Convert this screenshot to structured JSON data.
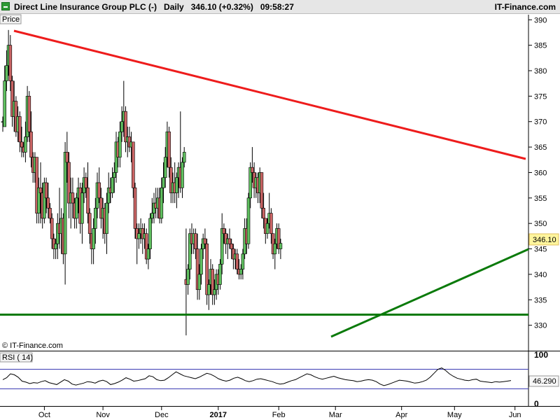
{
  "header": {
    "instrument": "Direct Line Insurance Group PLC (-)",
    "period": "Daily",
    "price": "346.10 (+0.32%)",
    "time": "09:58:27",
    "brand": "IT-Finance.com"
  },
  "colors": {
    "up": "#5fbf5f",
    "down": "#c96464",
    "resistance": "#ee1c1c",
    "support": "#0a7a0a",
    "rsi": "#000000",
    "rsi_band": "#3c3cb4"
  },
  "chart_data": [
    {
      "type": "candlestick",
      "title": "Price",
      "watermark": "© IT-Finance.com",
      "ylim": [
        325,
        391
      ],
      "yticks": [
        330,
        335,
        340,
        345,
        350,
        355,
        360,
        365,
        370,
        375,
        380,
        385,
        390
      ],
      "last_price_label": "346.10",
      "last_price": 346.1,
      "x_months": [
        {
          "label": "Oct",
          "pos": 22,
          "bold": false
        },
        {
          "label": "Nov",
          "pos": 53,
          "bold": false
        },
        {
          "label": "Dec",
          "pos": 84,
          "bold": false
        },
        {
          "label": "2017",
          "pos": 114,
          "bold": true
        },
        {
          "label": "Feb",
          "pos": 146,
          "bold": false
        },
        {
          "label": "Mar",
          "pos": 176,
          "bold": false
        },
        {
          "label": "Apr",
          "pos": 211,
          "bold": false
        },
        {
          "label": "May",
          "pos": 239,
          "bold": false
        },
        {
          "label": "Jun",
          "pos": 271,
          "bold": false
        }
      ],
      "candles": [
        [
          370.0,
          371.0,
          368.0,
          370.0
        ],
        [
          369.0,
          381.0,
          369.0,
          378.0
        ],
        [
          378.0,
          384.0,
          376.0,
          381.0
        ],
        [
          381.0,
          388.0,
          379.0,
          385.0
        ],
        [
          385.0,
          387.0,
          376.0,
          378.0
        ],
        [
          378.0,
          379.0,
          369.0,
          371.0
        ],
        [
          371.0,
          378.0,
          368.0,
          374.0
        ],
        [
          374.0,
          375.0,
          367.0,
          368.0
        ],
        [
          368.0,
          373.0,
          366.0,
          371.0
        ],
        [
          371.0,
          372.0,
          364.0,
          366.0
        ],
        [
          366.0,
          369.0,
          363.0,
          365.0
        ],
        [
          365.0,
          366.0,
          363.0,
          364.0
        ],
        [
          364.0,
          370.0,
          362.0,
          367.0
        ],
        [
          367.0,
          377.0,
          366.0,
          375.0
        ],
        [
          375.0,
          376.0,
          366.0,
          368.0
        ],
        [
          368.0,
          372.0,
          361.0,
          363.0
        ],
        [
          363.0,
          364.0,
          358.0,
          360.0
        ],
        [
          360.0,
          364.0,
          358.0,
          363.0
        ],
        [
          363.0,
          363.0,
          350.0,
          352.0
        ],
        [
          352.0,
          359.0,
          350.0,
          357.0
        ],
        [
          357.0,
          362.0,
          350.0,
          356.0
        ],
        [
          356.0,
          358.0,
          349.0,
          351.0
        ],
        [
          351.0,
          359.0,
          350.0,
          358.0
        ],
        [
          358.0,
          359.0,
          352.0,
          355.0
        ],
        [
          355.0,
          358.0,
          351.0,
          353.0
        ],
        [
          353.0,
          354.0,
          350.0,
          351.0
        ],
        [
          351.0,
          352.0,
          345.0,
          347.0
        ],
        [
          347.0,
          348.0,
          343.0,
          345.0
        ],
        [
          345.0,
          347.0,
          343.0,
          346.0
        ],
        [
          346.0,
          352.0,
          343.0,
          350.0
        ],
        [
          350.0,
          357.0,
          345.0,
          348.0
        ],
        [
          348.0,
          353.0,
          344.0,
          351.0
        ],
        [
          351.0,
          352.0,
          342.0,
          344.0
        ],
        [
          344.0,
          366.0,
          338.0,
          364.0
        ],
        [
          364.0,
          368.0,
          358.0,
          362.0
        ],
        [
          362.0,
          364.0,
          351.0,
          354.0
        ],
        [
          354.0,
          359.0,
          349.0,
          356.0
        ],
        [
          356.0,
          359.0,
          351.0,
          354.0
        ],
        [
          354.0,
          355.0,
          349.0,
          351.0
        ],
        [
          351.0,
          356.0,
          349.0,
          355.0
        ],
        [
          355.0,
          359.0,
          352.0,
          357.0
        ],
        [
          357.0,
          358.0,
          348.0,
          350.0
        ],
        [
          350.0,
          358.0,
          346.0,
          356.0
        ],
        [
          356.0,
          361.0,
          354.0,
          359.0
        ],
        [
          359.0,
          360.0,
          355.0,
          357.0
        ],
        [
          357.0,
          362.0,
          350.0,
          352.0
        ],
        [
          352.0,
          353.0,
          346.0,
          348.0
        ],
        [
          348.0,
          348.0,
          342.0,
          345.0
        ],
        [
          345.0,
          351.0,
          342.0,
          349.0
        ],
        [
          349.0,
          355.0,
          346.0,
          353.0
        ],
        [
          353.0,
          360.0,
          351.0,
          358.0
        ],
        [
          358.0,
          361.0,
          354.0,
          355.0
        ],
        [
          355.0,
          357.0,
          349.0,
          351.0
        ],
        [
          351.0,
          355.0,
          347.0,
          353.0
        ],
        [
          353.0,
          354.0,
          346.0,
          348.0
        ],
        [
          348.0,
          356.0,
          344.0,
          354.0
        ],
        [
          354.0,
          360.0,
          352.0,
          357.0
        ],
        [
          357.0,
          359.0,
          354.0,
          356.0
        ],
        [
          356.0,
          361.0,
          355.0,
          359.0
        ],
        [
          359.0,
          362.0,
          356.0,
          360.0
        ],
        [
          360.0,
          368.0,
          358.0,
          366.0
        ],
        [
          366.0,
          367.0,
          361.0,
          363.0
        ],
        [
          363.0,
          370.0,
          361.0,
          368.0
        ],
        [
          368.0,
          373.0,
          366.0,
          370.0
        ],
        [
          370.0,
          378.0,
          367.0,
          372.0
        ],
        [
          372.0,
          373.0,
          364.0,
          366.0
        ],
        [
          366.0,
          369.0,
          363.0,
          367.0
        ],
        [
          367.0,
          369.0,
          364.0,
          365.0
        ],
        [
          365.0,
          368.0,
          362.0,
          366.0
        ],
        [
          366.0,
          366.0,
          355.0,
          357.0
        ],
        [
          357.0,
          358.0,
          347.0,
          349.0
        ],
        [
          349.0,
          350.0,
          342.0,
          347.0
        ],
        [
          347.0,
          350.0,
          345.0,
          348.0
        ],
        [
          348.0,
          351.0,
          346.0,
          349.0
        ],
        [
          349.0,
          350.0,
          344.0,
          347.0
        ],
        [
          347.0,
          350.0,
          345.0,
          348.0
        ],
        [
          348.0,
          349.0,
          342.0,
          343.0
        ],
        [
          343.0,
          346.0,
          341.0,
          345.0
        ],
        [
          345.0,
          352.0,
          343.0,
          351.0
        ],
        [
          351.0,
          355.0,
          350.0,
          352.0
        ],
        [
          352.0,
          356.0,
          350.0,
          354.0
        ],
        [
          354.0,
          357.0,
          351.0,
          353.0
        ],
        [
          353.0,
          357.0,
          351.0,
          355.0
        ],
        [
          355.0,
          357.0,
          350.0,
          351.0
        ],
        [
          351.0,
          359.0,
          350.0,
          357.0
        ],
        [
          357.0,
          362.0,
          354.0,
          359.0
        ],
        [
          359.0,
          365.0,
          357.0,
          363.0
        ],
        [
          363.0,
          370.0,
          361.0,
          368.0
        ],
        [
          368.0,
          369.0,
          359.0,
          361.0
        ],
        [
          361.0,
          363.0,
          354.0,
          356.0
        ],
        [
          356.0,
          360.0,
          354.0,
          358.0
        ],
        [
          358.0,
          362.0,
          354.0,
          356.0
        ],
        [
          356.0,
          360.0,
          353.0,
          359.0
        ],
        [
          359.0,
          362.0,
          355.0,
          361.0
        ],
        [
          361.0,
          372.0,
          356.0,
          357.0
        ],
        [
          357.0,
          363.0,
          355.0,
          362.0
        ],
        [
          362.0,
          365.0,
          361.0,
          364.0
        ],
        [
          339.0,
          349.0,
          328.0,
          338.0
        ],
        [
          338.0,
          342.0,
          336.0,
          341.0
        ],
        [
          341.0,
          349.0,
          339.0,
          348.0
        ],
        [
          348.0,
          350.0,
          344.0,
          346.0
        ],
        [
          346.0,
          349.0,
          344.0,
          348.0
        ],
        [
          348.0,
          349.0,
          343.0,
          345.0
        ],
        [
          345.0,
          348.0,
          335.0,
          337.0
        ],
        [
          337.0,
          342.0,
          335.0,
          340.0
        ],
        [
          340.0,
          346.0,
          338.0,
          345.0
        ],
        [
          345.0,
          348.0,
          343.0,
          347.0
        ],
        [
          347.0,
          349.0,
          345.0,
          346.0
        ],
        [
          346.0,
          347.0,
          334.0,
          336.0
        ],
        [
          336.0,
          339.0,
          333.0,
          338.0
        ],
        [
          338.0,
          343.0,
          336.0,
          341.0
        ],
        [
          341.0,
          342.0,
          334.0,
          336.0
        ],
        [
          336.0,
          339.0,
          334.0,
          337.0
        ],
        [
          337.0,
          341.0,
          335.0,
          340.0
        ],
        [
          340.0,
          341.0,
          336.0,
          338.0
        ],
        [
          338.0,
          343.0,
          337.0,
          342.0
        ],
        [
          342.0,
          352.0,
          340.0,
          349.0
        ],
        [
          349.0,
          350.0,
          346.0,
          348.0
        ],
        [
          348.0,
          349.0,
          344.0,
          346.0
        ],
        [
          346.0,
          348.0,
          343.0,
          347.0
        ],
        [
          347.0,
          349.0,
          345.0,
          346.0
        ],
        [
          346.0,
          347.0,
          343.0,
          345.0
        ],
        [
          345.0,
          346.0,
          341.0,
          343.0
        ],
        [
          343.0,
          345.0,
          341.0,
          344.0
        ],
        [
          344.0,
          345.0,
          340.0,
          341.0
        ],
        [
          341.0,
          343.0,
          339.0,
          340.0
        ],
        [
          340.0,
          342.0,
          339.0,
          341.0
        ],
        [
          341.0,
          345.0,
          339.0,
          344.0
        ],
        [
          344.0,
          351.0,
          343.0,
          349.0
        ],
        [
          349.0,
          351.0,
          344.0,
          346.0
        ],
        [
          346.0,
          356.0,
          345.0,
          355.0
        ],
        [
          355.0,
          362.0,
          353.0,
          361.0
        ],
        [
          361.0,
          365.0,
          358.0,
          360.0
        ],
        [
          360.0,
          362.0,
          355.0,
          357.0
        ],
        [
          357.0,
          360.0,
          355.0,
          359.0
        ],
        [
          359.0,
          360.0,
          354.0,
          356.0
        ],
        [
          356.0,
          361.0,
          354.0,
          360.0
        ],
        [
          360.0,
          360.0,
          351.0,
          353.0
        ],
        [
          353.0,
          356.0,
          349.0,
          351.0
        ],
        [
          351.0,
          351.0,
          346.0,
          348.0
        ],
        [
          348.0,
          351.0,
          347.0,
          350.0
        ],
        [
          350.0,
          356.0,
          349.0,
          352.0
        ],
        [
          352.0,
          353.0,
          346.0,
          348.0
        ],
        [
          348.0,
          348.0,
          343.0,
          344.0
        ],
        [
          344.0,
          347.0,
          341.0,
          346.0
        ],
        [
          346.0,
          350.0,
          345.0,
          349.0
        ],
        [
          349.0,
          350.0,
          344.0,
          345.0
        ],
        [
          345.0,
          347.0,
          343.0,
          346.1
        ]
      ]
    },
    {
      "type": "line",
      "title": "RSI ( 14)",
      "ylim": [
        0,
        100
      ],
      "yticks": [
        0,
        50,
        100
      ],
      "bands": [
        30,
        70
      ],
      "last_value_label": "46.290",
      "values": [
        48,
        52,
        60,
        58,
        53,
        45,
        43,
        40,
        42,
        41,
        44,
        46,
        42,
        40,
        38,
        43,
        48,
        45,
        39,
        37,
        39,
        41,
        44,
        43,
        41,
        45,
        47,
        44,
        38,
        40,
        43,
        47,
        52,
        49,
        45,
        46,
        48,
        50,
        56,
        54,
        48,
        46,
        47,
        52,
        58,
        64,
        60,
        56,
        54,
        52,
        50,
        53,
        57,
        61,
        59,
        55,
        50,
        47,
        45,
        47,
        51,
        53,
        50,
        46,
        44,
        46,
        49,
        50,
        48,
        46,
        44,
        41,
        39,
        40,
        43,
        46,
        48,
        52,
        56,
        60,
        58,
        54,
        51,
        49,
        51,
        53,
        55,
        52,
        50,
        48,
        47,
        46,
        44,
        45,
        47,
        48,
        47,
        44,
        39,
        36,
        38,
        41,
        44,
        47,
        46,
        45,
        43,
        41,
        42,
        44,
        47,
        53,
        61,
        69,
        72,
        67,
        60,
        55,
        51,
        49,
        47,
        46,
        48,
        49,
        45,
        44,
        43,
        42,
        44,
        43,
        44,
        45,
        46.29
      ]
    }
  ]
}
